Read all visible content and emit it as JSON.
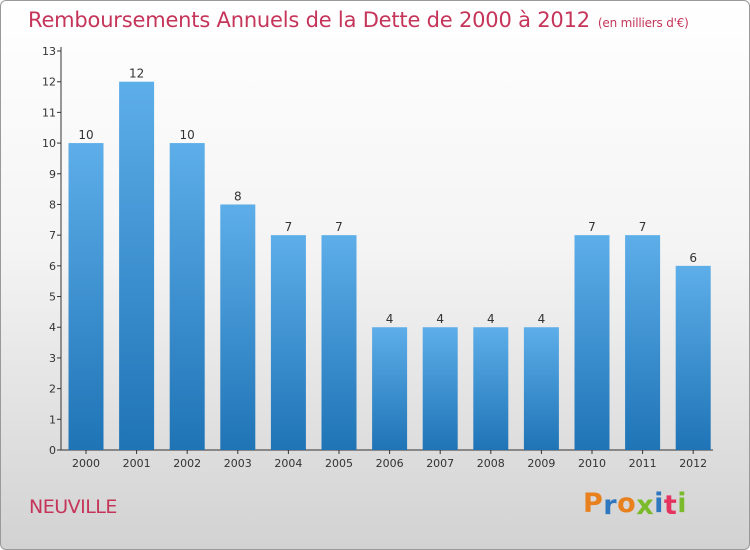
{
  "header": {
    "title": "Remboursements Annuels de la Dette de 2000 à 2012",
    "unit": "(en milliers d'€)"
  },
  "footer": {
    "commune": "NEUVILLE",
    "logo_text": "Proxiti",
    "logo_colors": [
      "#e8801e",
      "#2f77bf",
      "#e8801e",
      "#7bbb2b",
      "#2f77bf",
      "#e4335f",
      "#7bbb2b"
    ]
  },
  "colors": {
    "title": "#c5355a",
    "bar_top": "#5daee9",
    "bar_bottom": "#1f74b6",
    "axis": "#333333",
    "label": "#333333"
  },
  "chart_data": {
    "type": "bar",
    "title": "Remboursements Annuels de la Dette de 2000 à 2012",
    "categories": [
      "2000",
      "2001",
      "2002",
      "2003",
      "2004",
      "2005",
      "2006",
      "2007",
      "2008",
      "2009",
      "2010",
      "2011",
      "2012"
    ],
    "values": [
      10,
      12,
      10,
      8,
      7,
      7,
      4,
      4,
      4,
      4,
      7,
      7,
      6
    ],
    "ylim": [
      0,
      13
    ],
    "yticks": [
      0,
      1,
      2,
      3,
      4,
      5,
      6,
      7,
      8,
      9,
      10,
      11,
      12,
      13
    ],
    "grid": false,
    "data_labels": true
  }
}
